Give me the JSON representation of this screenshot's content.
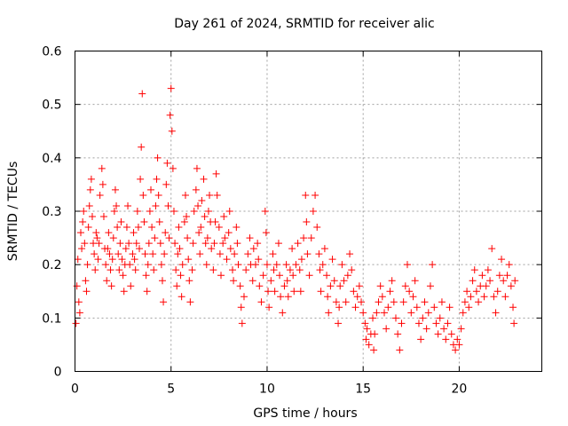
{
  "chart_data": {
    "type": "scatter",
    "title": "Day 261 of 2024, SRMTID for receiver alic",
    "xlabel": "GPS time / hours",
    "ylabel": "SRMTID / TECUs",
    "xlim": [
      0,
      24.3
    ],
    "ylim": [
      0,
      0.6
    ],
    "xticks": [
      0,
      5,
      10,
      15,
      20
    ],
    "xtick_labels": [
      "0",
      "5",
      "10",
      "15",
      "20"
    ],
    "yticks": [
      0,
      0.1,
      0.2,
      0.3,
      0.4,
      0.5,
      0.6
    ],
    "ytick_labels": [
      "0",
      "0.1",
      "0.2",
      "0.3",
      "0.4",
      "0.5",
      "0.6"
    ],
    "grid": true,
    "marker": "plus",
    "series": [
      {
        "name": "SRMTID",
        "color": "#ff0000",
        "points": [
          [
            0.05,
            0.09
          ],
          [
            0.1,
            0.16
          ],
          [
            0.15,
            0.21
          ],
          [
            0.2,
            0.13
          ],
          [
            0.25,
            0.11
          ],
          [
            0.3,
            0.26
          ],
          [
            0.35,
            0.23
          ],
          [
            0.4,
            0.28
          ],
          [
            0.45,
            0.3
          ],
          [
            0.5,
            0.24
          ],
          [
            0.55,
            0.17
          ],
          [
            0.6,
            0.15
          ],
          [
            0.65,
            0.2
          ],
          [
            0.7,
            0.27
          ],
          [
            0.75,
            0.31
          ],
          [
            0.8,
            0.34
          ],
          [
            0.85,
            0.36
          ],
          [
            0.9,
            0.29
          ],
          [
            0.95,
            0.24
          ],
          [
            1.0,
            0.22
          ],
          [
            1.05,
            0.19
          ],
          [
            1.1,
            0.26
          ],
          [
            1.15,
            0.25
          ],
          [
            1.2,
            0.21
          ],
          [
            1.25,
            0.24
          ],
          [
            1.3,
            0.33
          ],
          [
            1.4,
            0.38
          ],
          [
            1.45,
            0.35
          ],
          [
            1.5,
            0.29
          ],
          [
            1.55,
            0.23
          ],
          [
            1.6,
            0.2
          ],
          [
            1.65,
            0.17
          ],
          [
            1.7,
            0.23
          ],
          [
            1.75,
            0.26
          ],
          [
            1.8,
            0.22
          ],
          [
            1.85,
            0.19
          ],
          [
            1.9,
            0.16
          ],
          [
            1.95,
            0.21
          ],
          [
            2.0,
            0.25
          ],
          [
            2.05,
            0.3
          ],
          [
            2.1,
            0.34
          ],
          [
            2.15,
            0.31
          ],
          [
            2.2,
            0.27
          ],
          [
            2.25,
            0.22
          ],
          [
            2.3,
            0.19
          ],
          [
            2.35,
            0.24
          ],
          [
            2.4,
            0.28
          ],
          [
            2.45,
            0.21
          ],
          [
            2.5,
            0.18
          ],
          [
            2.55,
            0.15
          ],
          [
            2.6,
            0.2
          ],
          [
            2.65,
            0.23
          ],
          [
            2.7,
            0.27
          ],
          [
            2.75,
            0.31
          ],
          [
            2.8,
            0.24
          ],
          [
            2.85,
            0.2
          ],
          [
            2.9,
            0.16
          ],
          [
            3.0,
            0.22
          ],
          [
            3.05,
            0.26
          ],
          [
            3.1,
            0.21
          ],
          [
            3.15,
            0.19
          ],
          [
            3.2,
            0.24
          ],
          [
            3.25,
            0.3
          ],
          [
            3.3,
            0.27
          ],
          [
            3.35,
            0.23
          ],
          [
            3.4,
            0.36
          ],
          [
            3.45,
            0.42
          ],
          [
            3.5,
            0.52
          ],
          [
            3.55,
            0.33
          ],
          [
            3.6,
            0.28
          ],
          [
            3.65,
            0.22
          ],
          [
            3.7,
            0.18
          ],
          [
            3.75,
            0.15
          ],
          [
            3.8,
            0.2
          ],
          [
            3.85,
            0.24
          ],
          [
            3.9,
            0.3
          ],
          [
            3.95,
            0.34
          ],
          [
            4.0,
            0.27
          ],
          [
            4.05,
            0.22
          ],
          [
            4.1,
            0.19
          ],
          [
            4.15,
            0.25
          ],
          [
            4.2,
            0.31
          ],
          [
            4.25,
            0.36
          ],
          [
            4.3,
            0.4
          ],
          [
            4.35,
            0.33
          ],
          [
            4.4,
            0.28
          ],
          [
            4.45,
            0.24
          ],
          [
            4.5,
            0.2
          ],
          [
            4.55,
            0.17
          ],
          [
            4.6,
            0.13
          ],
          [
            4.65,
            0.22
          ],
          [
            4.7,
            0.26
          ],
          [
            4.75,
            0.35
          ],
          [
            4.8,
            0.39
          ],
          [
            4.85,
            0.31
          ],
          [
            4.9,
            0.25
          ],
          [
            4.95,
            0.48
          ],
          [
            5.0,
            0.53
          ],
          [
            5.05,
            0.45
          ],
          [
            5.1,
            0.38
          ],
          [
            5.15,
            0.3
          ],
          [
            5.2,
            0.24
          ],
          [
            5.25,
            0.19
          ],
          [
            5.3,
            0.16
          ],
          [
            5.35,
            0.22
          ],
          [
            5.4,
            0.27
          ],
          [
            5.45,
            0.23
          ],
          [
            5.5,
            0.18
          ],
          [
            5.55,
            0.14
          ],
          [
            5.6,
            0.2
          ],
          [
            5.7,
            0.28
          ],
          [
            5.75,
            0.33
          ],
          [
            5.8,
            0.29
          ],
          [
            5.85,
            0.25
          ],
          [
            5.9,
            0.21
          ],
          [
            5.95,
            0.17
          ],
          [
            6.0,
            0.13
          ],
          [
            6.1,
            0.19
          ],
          [
            6.15,
            0.24
          ],
          [
            6.2,
            0.3
          ],
          [
            6.3,
            0.34
          ],
          [
            6.35,
            0.38
          ],
          [
            6.4,
            0.31
          ],
          [
            6.45,
            0.26
          ],
          [
            6.5,
            0.22
          ],
          [
            6.55,
            0.27
          ],
          [
            6.6,
            0.32
          ],
          [
            6.7,
            0.36
          ],
          [
            6.75,
            0.29
          ],
          [
            6.8,
            0.24
          ],
          [
            6.85,
            0.2
          ],
          [
            6.9,
            0.25
          ],
          [
            6.95,
            0.3
          ],
          [
            7.0,
            0.33
          ],
          [
            7.05,
            0.28
          ],
          [
            7.1,
            0.23
          ],
          [
            7.2,
            0.19
          ],
          [
            7.25,
            0.24
          ],
          [
            7.3,
            0.28
          ],
          [
            7.35,
            0.37
          ],
          [
            7.4,
            0.33
          ],
          [
            7.5,
            0.27
          ],
          [
            7.55,
            0.22
          ],
          [
            7.6,
            0.18
          ],
          [
            7.7,
            0.24
          ],
          [
            7.75,
            0.29
          ],
          [
            7.8,
            0.25
          ],
          [
            7.9,
            0.21
          ],
          [
            8.0,
            0.26
          ],
          [
            8.05,
            0.3
          ],
          [
            8.1,
            0.23
          ],
          [
            8.2,
            0.19
          ],
          [
            8.25,
            0.17
          ],
          [
            8.3,
            0.22
          ],
          [
            8.4,
            0.27
          ],
          [
            8.45,
            0.24
          ],
          [
            8.5,
            0.2
          ],
          [
            8.6,
            0.16
          ],
          [
            8.65,
            0.12
          ],
          [
            8.7,
            0.09
          ],
          [
            8.8,
            0.14
          ],
          [
            8.9,
            0.19
          ],
          [
            9.0,
            0.22
          ],
          [
            9.1,
            0.25
          ],
          [
            9.15,
            0.2
          ],
          [
            9.25,
            0.17
          ],
          [
            9.3,
            0.23
          ],
          [
            9.4,
            0.2
          ],
          [
            9.5,
            0.24
          ],
          [
            9.55,
            0.21
          ],
          [
            9.6,
            0.16
          ],
          [
            9.7,
            0.13
          ],
          [
            9.8,
            0.18
          ],
          [
            9.9,
            0.3
          ],
          [
            9.95,
            0.26
          ],
          [
            10.0,
            0.2
          ],
          [
            10.05,
            0.15
          ],
          [
            10.1,
            0.12
          ],
          [
            10.2,
            0.17
          ],
          [
            10.3,
            0.22
          ],
          [
            10.35,
            0.19
          ],
          [
            10.4,
            0.15
          ],
          [
            10.5,
            0.2
          ],
          [
            10.6,
            0.24
          ],
          [
            10.65,
            0.18
          ],
          [
            10.7,
            0.14
          ],
          [
            10.8,
            0.11
          ],
          [
            10.9,
            0.16
          ],
          [
            11.0,
            0.2
          ],
          [
            11.05,
            0.17
          ],
          [
            11.1,
            0.14
          ],
          [
            11.2,
            0.19
          ],
          [
            11.3,
            0.23
          ],
          [
            11.35,
            0.18
          ],
          [
            11.4,
            0.15
          ],
          [
            11.5,
            0.2
          ],
          [
            11.6,
            0.24
          ],
          [
            11.7,
            0.19
          ],
          [
            11.75,
            0.15
          ],
          [
            11.8,
            0.21
          ],
          [
            11.9,
            0.25
          ],
          [
            12.0,
            0.33
          ],
          [
            12.05,
            0.28
          ],
          [
            12.1,
            0.22
          ],
          [
            12.2,
            0.18
          ],
          [
            12.3,
            0.25
          ],
          [
            12.4,
            0.3
          ],
          [
            12.5,
            0.33
          ],
          [
            12.6,
            0.27
          ],
          [
            12.7,
            0.22
          ],
          [
            12.75,
            0.19
          ],
          [
            12.8,
            0.15
          ],
          [
            12.9,
            0.2
          ],
          [
            13.0,
            0.23
          ],
          [
            13.1,
            0.18
          ],
          [
            13.15,
            0.14
          ],
          [
            13.2,
            0.11
          ],
          [
            13.3,
            0.16
          ],
          [
            13.4,
            0.21
          ],
          [
            13.5,
            0.17
          ],
          [
            13.6,
            0.13
          ],
          [
            13.7,
            0.09
          ],
          [
            13.75,
            0.12
          ],
          [
            13.8,
            0.16
          ],
          [
            13.9,
            0.2
          ],
          [
            14.0,
            0.17
          ],
          [
            14.1,
            0.13
          ],
          [
            14.2,
            0.18
          ],
          [
            14.3,
            0.22
          ],
          [
            14.4,
            0.19
          ],
          [
            14.5,
            0.15
          ],
          [
            14.6,
            0.12
          ],
          [
            14.7,
            0.14
          ],
          [
            14.8,
            0.16
          ],
          [
            14.9,
            0.13
          ],
          [
            15.0,
            0.11
          ],
          [
            15.1,
            0.09
          ],
          [
            15.15,
            0.06
          ],
          [
            15.2,
            0.08
          ],
          [
            15.3,
            0.05
          ],
          [
            15.4,
            0.07
          ],
          [
            15.5,
            0.1
          ],
          [
            15.55,
            0.04
          ],
          [
            15.6,
            0.07
          ],
          [
            15.7,
            0.11
          ],
          [
            15.8,
            0.13
          ],
          [
            15.9,
            0.16
          ],
          [
            16.0,
            0.14
          ],
          [
            16.1,
            0.11
          ],
          [
            16.2,
            0.08
          ],
          [
            16.3,
            0.12
          ],
          [
            16.4,
            0.15
          ],
          [
            16.5,
            0.17
          ],
          [
            16.6,
            0.13
          ],
          [
            16.7,
            0.1
          ],
          [
            16.8,
            0.07
          ],
          [
            16.9,
            0.04
          ],
          [
            17.0,
            0.09
          ],
          [
            17.1,
            0.13
          ],
          [
            17.2,
            0.16
          ],
          [
            17.3,
            0.2
          ],
          [
            17.4,
            0.15
          ],
          [
            17.5,
            0.11
          ],
          [
            17.6,
            0.14
          ],
          [
            17.7,
            0.17
          ],
          [
            17.8,
            0.12
          ],
          [
            17.9,
            0.09
          ],
          [
            18.0,
            0.06
          ],
          [
            18.1,
            0.1
          ],
          [
            18.2,
            0.13
          ],
          [
            18.3,
            0.08
          ],
          [
            18.4,
            0.11
          ],
          [
            18.5,
            0.16
          ],
          [
            18.6,
            0.2
          ],
          [
            18.7,
            0.12
          ],
          [
            18.8,
            0.09
          ],
          [
            18.9,
            0.07
          ],
          [
            19.0,
            0.1
          ],
          [
            19.1,
            0.13
          ],
          [
            19.2,
            0.08
          ],
          [
            19.3,
            0.06
          ],
          [
            19.4,
            0.09
          ],
          [
            19.5,
            0.12
          ],
          [
            19.6,
            0.07
          ],
          [
            19.7,
            0.05
          ],
          [
            19.8,
            0.04
          ],
          [
            19.9,
            0.06
          ],
          [
            20.0,
            0.05
          ],
          [
            20.1,
            0.08
          ],
          [
            20.2,
            0.11
          ],
          [
            20.3,
            0.13
          ],
          [
            20.4,
            0.15
          ],
          [
            20.5,
            0.12
          ],
          [
            20.6,
            0.14
          ],
          [
            20.7,
            0.17
          ],
          [
            20.8,
            0.19
          ],
          [
            20.9,
            0.15
          ],
          [
            21.0,
            0.13
          ],
          [
            21.1,
            0.16
          ],
          [
            21.2,
            0.18
          ],
          [
            21.3,
            0.14
          ],
          [
            21.4,
            0.16
          ],
          [
            21.5,
            0.19
          ],
          [
            21.6,
            0.17
          ],
          [
            21.7,
            0.23
          ],
          [
            21.8,
            0.14
          ],
          [
            21.9,
            0.11
          ],
          [
            22.0,
            0.15
          ],
          [
            22.1,
            0.18
          ],
          [
            22.2,
            0.21
          ],
          [
            22.3,
            0.17
          ],
          [
            22.4,
            0.14
          ],
          [
            22.5,
            0.18
          ],
          [
            22.6,
            0.2
          ],
          [
            22.7,
            0.16
          ],
          [
            22.8,
            0.12
          ],
          [
            22.85,
            0.09
          ],
          [
            22.9,
            0.17
          ]
        ]
      }
    ]
  }
}
